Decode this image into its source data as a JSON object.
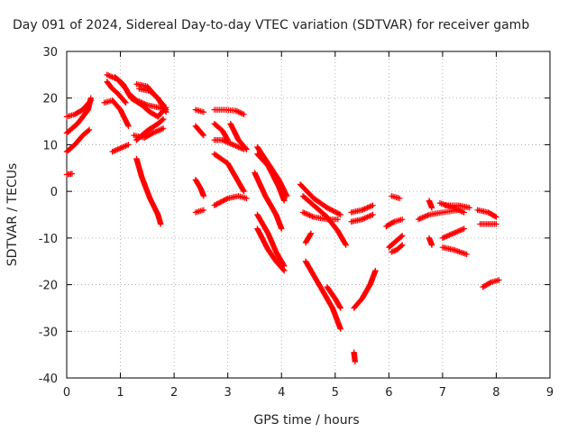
{
  "chart_data": {
    "type": "scatter",
    "title": "Day 091 of 2024, Sidereal Day-to-day VTEC variation (SDTVAR) for receiver gamb",
    "xlabel": "GPS time / hours",
    "ylabel": "SDTVAR / TECUs",
    "xlim": [
      0,
      9
    ],
    "ylim": [
      -40,
      30
    ],
    "xticks": [
      0,
      1,
      2,
      3,
      4,
      5,
      6,
      7,
      8,
      9
    ],
    "yticks": [
      -40,
      -30,
      -20,
      -10,
      0,
      10,
      20,
      30
    ],
    "grid": true,
    "legend": "none",
    "marker": "+",
    "color": "#ff0000",
    "tracks": [
      [
        [
          0.0,
          8.5
        ],
        [
          0.15,
          10.0
        ],
        [
          0.3,
          12.0
        ],
        [
          0.42,
          13.2
        ]
      ],
      [
        [
          0.0,
          12.5
        ],
        [
          0.2,
          14.5
        ],
        [
          0.4,
          17.5
        ],
        [
          0.45,
          20.0
        ]
      ],
      [
        [
          0.0,
          16.0
        ],
        [
          0.15,
          16.5
        ],
        [
          0.3,
          17.5
        ],
        [
          0.45,
          19.5
        ]
      ],
      [
        [
          0.0,
          3.6
        ],
        [
          0.1,
          3.8
        ]
      ],
      [
        [
          0.7,
          19.0
        ],
        [
          0.85,
          19.5
        ],
        [
          1.0,
          17.5
        ],
        [
          1.15,
          14.0
        ]
      ],
      [
        [
          0.75,
          25.0
        ],
        [
          0.95,
          24.0
        ],
        [
          1.1,
          22.0
        ],
        [
          1.2,
          20.0
        ],
        [
          1.4,
          18.5
        ],
        [
          1.55,
          17.0
        ],
        [
          1.7,
          16.0
        ],
        [
          1.85,
          18.0
        ]
      ],
      [
        [
          0.75,
          23.5
        ],
        [
          0.85,
          22.0
        ],
        [
          0.95,
          21.0
        ],
        [
          1.1,
          19.0
        ]
      ],
      [
        [
          0.9,
          24.5
        ],
        [
          1.05,
          23.0
        ],
        [
          1.15,
          21.0
        ],
        [
          1.3,
          19.5
        ],
        [
          1.5,
          18.5
        ],
        [
          1.7,
          18.0
        ],
        [
          1.85,
          17.5
        ]
      ],
      [
        [
          0.85,
          8.5
        ],
        [
          1.05,
          9.5
        ],
        [
          1.15,
          10.0
        ]
      ],
      [
        [
          1.3,
          11.0
        ],
        [
          1.5,
          13.0
        ],
        [
          1.7,
          14.5
        ],
        [
          1.8,
          15.5
        ]
      ],
      [
        [
          1.25,
          12.0
        ],
        [
          1.45,
          11.5
        ],
        [
          1.6,
          12.5
        ],
        [
          1.8,
          13.5
        ]
      ],
      [
        [
          1.3,
          7.0
        ],
        [
          1.4,
          3.0
        ],
        [
          1.55,
          -1.5
        ],
        [
          1.7,
          -5.0
        ],
        [
          1.75,
          -7.0
        ]
      ],
      [
        [
          1.3,
          23.0
        ],
        [
          1.5,
          22.5
        ],
        [
          1.65,
          20.5
        ],
        [
          1.8,
          18.5
        ]
      ],
      [
        [
          1.35,
          22.0
        ],
        [
          1.55,
          21.5
        ],
        [
          1.7,
          20.0
        ],
        [
          1.85,
          17.0
        ]
      ],
      [
        [
          2.4,
          17.5
        ],
        [
          2.55,
          17.0
        ]
      ],
      [
        [
          2.4,
          14.0
        ],
        [
          2.55,
          12.0
        ]
      ],
      [
        [
          2.4,
          2.5
        ],
        [
          2.5,
          0.5
        ],
        [
          2.55,
          -1.0
        ]
      ],
      [
        [
          2.4,
          -4.5
        ],
        [
          2.55,
          -4.0
        ]
      ],
      [
        [
          2.75,
          17.5
        ],
        [
          2.95,
          17.5
        ],
        [
          3.15,
          17.3
        ],
        [
          3.3,
          16.5
        ]
      ],
      [
        [
          2.75,
          14.5
        ],
        [
          2.9,
          13.0
        ],
        [
          3.0,
          11.0
        ]
      ],
      [
        [
          2.75,
          11.0
        ],
        [
          2.9,
          11.0
        ],
        [
          3.1,
          10.0
        ],
        [
          3.3,
          9.0
        ]
      ],
      [
        [
          2.75,
          8.0
        ],
        [
          3.0,
          6.0
        ],
        [
          3.15,
          3.0
        ],
        [
          3.3,
          0.0
        ]
      ],
      [
        [
          2.75,
          -3.0
        ],
        [
          3.0,
          -1.5
        ],
        [
          3.2,
          -1.0
        ],
        [
          3.35,
          -1.5
        ]
      ],
      [
        [
          3.05,
          14.5
        ],
        [
          3.2,
          11.0
        ],
        [
          3.35,
          9.0
        ]
      ],
      [
        [
          3.55,
          9.5
        ],
        [
          3.75,
          6.0
        ],
        [
          3.95,
          2.5
        ],
        [
          4.1,
          -1.0
        ]
      ],
      [
        [
          3.55,
          8.0
        ],
        [
          3.75,
          5.5
        ],
        [
          3.95,
          1.0
        ],
        [
          4.05,
          -2.0
        ]
      ],
      [
        [
          3.5,
          4.0
        ],
        [
          3.7,
          -1.0
        ],
        [
          3.9,
          -5.0
        ],
        [
          4.0,
          -8.0
        ]
      ],
      [
        [
          3.55,
          -5.0
        ],
        [
          3.75,
          -9.0
        ],
        [
          3.9,
          -13.0
        ],
        [
          4.05,
          -16.0
        ]
      ],
      [
        [
          3.55,
          -8.0
        ],
        [
          3.75,
          -12.5
        ],
        [
          3.9,
          -15.0
        ],
        [
          4.05,
          -17.0
        ]
      ],
      [
        [
          4.35,
          1.5
        ],
        [
          4.6,
          -1.5
        ],
        [
          4.85,
          -3.5
        ],
        [
          5.1,
          -5.0
        ]
      ],
      [
        [
          4.4,
          -1.0
        ],
        [
          4.6,
          -3.0
        ],
        [
          4.85,
          -5.5
        ],
        [
          5.05,
          -8.5
        ],
        [
          5.2,
          -11.5
        ]
      ],
      [
        [
          4.4,
          -4.5
        ],
        [
          4.6,
          -5.5
        ],
        [
          4.85,
          -6.0
        ],
        [
          5.05,
          -6.0
        ]
      ],
      [
        [
          4.45,
          -15.0
        ],
        [
          4.7,
          -20.0
        ],
        [
          4.95,
          -25.0
        ],
        [
          5.1,
          -29.5
        ]
      ],
      [
        [
          4.55,
          -9.0
        ],
        [
          4.45,
          -11.0
        ]
      ],
      [
        [
          4.85,
          -20.5
        ],
        [
          5.0,
          -23.0
        ],
        [
          5.1,
          -25.0
        ]
      ],
      [
        [
          5.3,
          -4.5
        ],
        [
          5.5,
          -4.0
        ],
        [
          5.7,
          -3.0
        ]
      ],
      [
        [
          5.3,
          -6.5
        ],
        [
          5.5,
          -6.0
        ],
        [
          5.7,
          -5.0
        ]
      ],
      [
        [
          5.35,
          -25.0
        ],
        [
          5.5,
          -23.0
        ],
        [
          5.65,
          -20.0
        ],
        [
          5.75,
          -17.0
        ]
      ],
      [
        [
          5.35,
          -34.5
        ],
        [
          5.37,
          -36.5
        ]
      ],
      [
        [
          5.95,
          -7.5
        ],
        [
          6.1,
          -6.5
        ],
        [
          6.25,
          -6.0
        ]
      ],
      [
        [
          6.05,
          -1.0
        ],
        [
          6.2,
          -1.5
        ]
      ],
      [
        [
          6.0,
          -12.0
        ],
        [
          6.15,
          -10.5
        ],
        [
          6.25,
          -9.5
        ]
      ],
      [
        [
          6.05,
          -13.0
        ],
        [
          6.15,
          -12.5
        ],
        [
          6.25,
          -11.5
        ]
      ],
      [
        [
          6.55,
          -6.0
        ],
        [
          6.75,
          -5.0
        ],
        [
          7.0,
          -4.5
        ],
        [
          7.3,
          -4.0
        ]
      ],
      [
        [
          6.75,
          -2.0
        ],
        [
          6.8,
          -3.5
        ]
      ],
      [
        [
          6.75,
          -10.0
        ],
        [
          6.8,
          -11.5
        ]
      ],
      [
        [
          6.95,
          -2.5
        ],
        [
          7.2,
          -3.5
        ],
        [
          7.4,
          -4.5
        ]
      ],
      [
        [
          7.0,
          -10.0
        ],
        [
          7.2,
          -9.0
        ],
        [
          7.4,
          -8.0
        ]
      ],
      [
        [
          7.0,
          -12.0
        ],
        [
          7.2,
          -12.5
        ],
        [
          7.45,
          -13.5
        ]
      ],
      [
        [
          7.05,
          -3.0
        ],
        [
          7.3,
          -3.0
        ],
        [
          7.5,
          -3.5
        ]
      ],
      [
        [
          7.65,
          -4.0
        ],
        [
          7.85,
          -4.5
        ],
        [
          8.0,
          -5.5
        ]
      ],
      [
        [
          7.7,
          -7.0
        ],
        [
          7.85,
          -7.0
        ],
        [
          8.0,
          -7.0
        ]
      ],
      [
        [
          7.75,
          -20.5
        ],
        [
          7.9,
          -19.5
        ],
        [
          8.05,
          -19.0
        ]
      ]
    ]
  }
}
